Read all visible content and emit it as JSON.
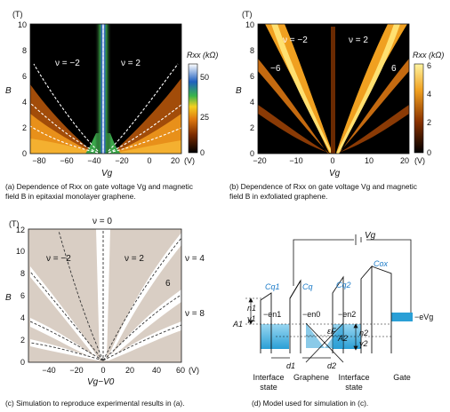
{
  "panel_a": {
    "unit_top": "(T)",
    "unit_right": "(V)",
    "y_axis_label": "B",
    "x_axis_label": "Vg",
    "y_ticks": [
      "0",
      "2",
      "4",
      "6",
      "8",
      "10"
    ],
    "x_ticks": [
      "−80",
      "−60",
      "−40",
      "−20",
      "0",
      "20"
    ],
    "label_left": "ν = −2",
    "label_right": "ν = 2",
    "colorbar_title": "Rxx (kΩ)",
    "colorbar_ticks": [
      "50",
      "25",
      "0"
    ],
    "caption_lines": [
      "(a) Dependence of Rxx on gate voltage Vg and magnetic",
      "field B in epitaxial monolayer graphene."
    ]
  },
  "panel_b": {
    "unit_top": "(T)",
    "unit_right": "(V)",
    "y_axis_label": "B",
    "x_axis_label": "Vg",
    "y_ticks": [
      "0",
      "2",
      "4",
      "6",
      "8",
      "10"
    ],
    "x_ticks": [
      "−20",
      "−10",
      "0",
      "10",
      "20"
    ],
    "label_left": "ν = −2",
    "label_right": "ν = 2",
    "label_far_left": "−6",
    "label_far_right": "6",
    "colorbar_title": "Rxx (kΩ)",
    "colorbar_ticks": [
      "6",
      "4",
      "2",
      "0"
    ],
    "caption_lines": [
      "(b) Dependence of Rxx on gate voltage Vg and magnetic",
      "field B in exfoliated graphene."
    ]
  },
  "panel_c": {
    "unit_top": "(T)",
    "unit_right": "(V)",
    "y_axis_label": "B",
    "x_axis_label": "Vg−V0",
    "y_ticks": [
      "0",
      "2",
      "4",
      "6",
      "8",
      "10",
      "12"
    ],
    "x_ticks": [
      "−40",
      "−20",
      "0",
      "20",
      "40",
      "60"
    ],
    "label_top": "ν = 0",
    "label_left": "ν = −2",
    "label_mid": "ν = 2",
    "label_r4": "ν = 4",
    "label_r6": "6",
    "label_r8": "ν = 8",
    "caption": "(c) Simulation to reproduce experimental results in (a)."
  },
  "panel_d": {
    "vg_label": "Vg",
    "labels": {
      "cg1": "Cq1",
      "cq": "Cq",
      "cg2": "Cq2",
      "cgd": "Cox",
      "n1": "n1",
      "g1": "γ1",
      "A1": "A1",
      "A2": "A2",
      "n2": "n2",
      "g2": "γ2",
      "en1": "−en1",
      "en0": "−en0",
      "en2": "−en2",
      "eF": "εF",
      "eVg": "−eVg",
      "d1": "d1",
      "d2": "d2"
    },
    "bottom_labels": [
      "Interface",
      "state",
      "Graphene",
      "Interface",
      "state",
      "Gate"
    ],
    "caption": "(d) Model used for simulation in (c)."
  }
}
